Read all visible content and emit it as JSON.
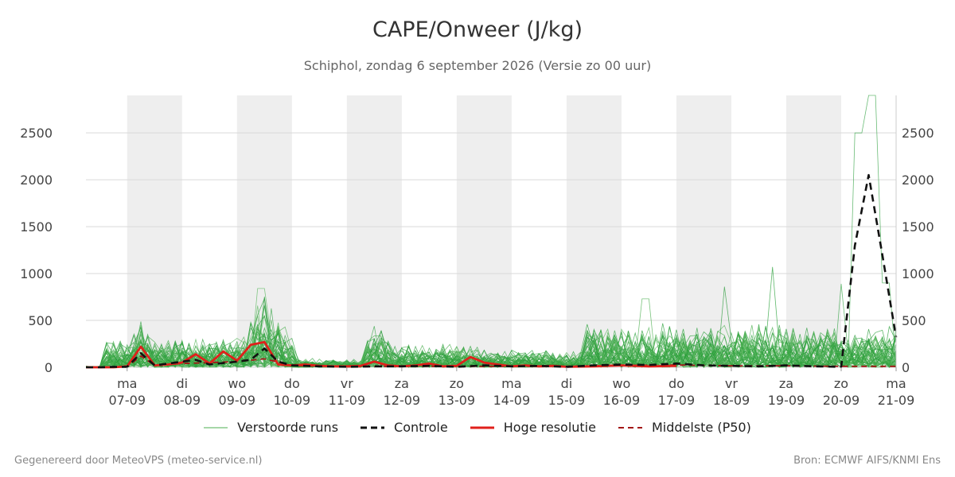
{
  "header": {
    "title": "CAPE/Onweer (J/kg)",
    "subtitle": "Schiphol, zondag  6 september 2026 (Versie zo 00 uur)"
  },
  "legend": {
    "items": [
      {
        "label": "Verstoorde runs",
        "color": "#4caf50",
        "style": "thin"
      },
      {
        "label": "Controle",
        "color": "#111111",
        "style": "dashed-bold"
      },
      {
        "label": "Hoge resolutie",
        "color": "#e0201b",
        "style": "solid-bold"
      },
      {
        "label": "Middelste (P50)",
        "color": "#a31515",
        "style": "dashed"
      }
    ]
  },
  "footer": {
    "left": "Gegenereerd door MeteoVPS (meteo-service.nl)",
    "right": "Bron: ECMWF AIFS/KNMI Ens"
  },
  "chart_data": {
    "type": "line",
    "ylim": [
      0,
      2900
    ],
    "yticks": [
      0,
      500,
      1000,
      1500,
      2000,
      2500
    ],
    "xlim": [
      -0.75,
      14
    ],
    "x_ticks": [
      {
        "day": "ma",
        "date": "07-09"
      },
      {
        "day": "di",
        "date": "08-09"
      },
      {
        "day": "wo",
        "date": "09-09"
      },
      {
        "day": "do",
        "date": "10-09"
      },
      {
        "day": "vr",
        "date": "11-09"
      },
      {
        "day": "za",
        "date": "12-09"
      },
      {
        "day": "zo",
        "date": "13-09"
      },
      {
        "day": "ma",
        "date": "14-09"
      },
      {
        "day": "di",
        "date": "15-09"
      },
      {
        "day": "wo",
        "date": "16-09"
      },
      {
        "day": "do",
        "date": "17-09"
      },
      {
        "day": "vr",
        "date": "18-09"
      },
      {
        "day": "za",
        "date": "19-09"
      },
      {
        "day": "zo",
        "date": "20-09"
      },
      {
        "day": "ma",
        "date": "21-09"
      }
    ],
    "shaded_days": [
      0,
      2,
      4,
      6,
      8,
      10,
      12
    ],
    "grid": true,
    "legend_position": "bottom",
    "x_units": "days since 07-09 00h",
    "series": [
      {
        "name": "Controle",
        "x": [
          -0.75,
          -0.5,
          -0.25,
          0,
          0.25,
          0.5,
          0.75,
          1,
          1.25,
          1.5,
          1.75,
          2,
          2.25,
          2.5,
          2.75,
          3,
          3.5,
          4,
          4.5,
          5,
          5.5,
          6,
          6.5,
          7,
          7.5,
          8,
          8.5,
          9,
          9.5,
          10,
          10.5,
          11,
          11.5,
          12,
          12.5,
          13,
          13.25,
          13.5,
          13.75,
          14
        ],
        "y": [
          0,
          0,
          5,
          5,
          150,
          20,
          40,
          60,
          80,
          30,
          45,
          60,
          80,
          200,
          60,
          20,
          10,
          5,
          10,
          10,
          15,
          5,
          20,
          10,
          15,
          5,
          20,
          30,
          25,
          40,
          20,
          15,
          10,
          20,
          10,
          5,
          1300,
          2050,
          1200,
          320
        ]
      },
      {
        "name": "Hoge resolutie",
        "x": [
          -0.75,
          -0.5,
          -0.25,
          0,
          0.25,
          0.5,
          0.75,
          1,
          1.25,
          1.5,
          1.75,
          2,
          2.25,
          2.5,
          2.75,
          3,
          3.25,
          3.5,
          3.75,
          4,
          4.25,
          4.5,
          4.75,
          5,
          5.25,
          5.5,
          5.75,
          6,
          6.25,
          6.5,
          6.75,
          7,
          7.25,
          7.5,
          7.75,
          8,
          8.5,
          9,
          9.5,
          10
        ],
        "y": [
          0,
          0,
          0,
          10,
          220,
          20,
          30,
          50,
          140,
          40,
          170,
          70,
          240,
          270,
          30,
          20,
          30,
          15,
          10,
          10,
          15,
          60,
          20,
          10,
          20,
          40,
          10,
          15,
          110,
          50,
          30,
          10,
          20,
          10,
          15,
          5,
          10,
          20,
          10,
          15
        ]
      },
      {
        "name": "Middelste (P50)",
        "x": [
          -0.75,
          0,
          0.25,
          0.5,
          1,
          1.5,
          2,
          2.5,
          3,
          3.5,
          4,
          5,
          6,
          7,
          8,
          9,
          10,
          11,
          12,
          13,
          14
        ],
        "y": [
          0,
          5,
          120,
          20,
          40,
          50,
          60,
          90,
          20,
          10,
          5,
          10,
          10,
          10,
          10,
          20,
          25,
          15,
          15,
          10,
          10
        ]
      }
    ]
  }
}
